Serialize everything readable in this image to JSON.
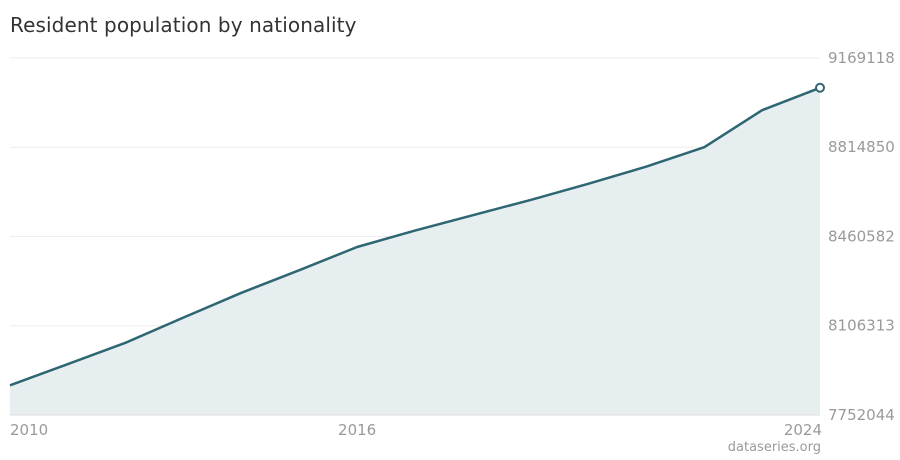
{
  "chart_data": {
    "type": "area",
    "title": "Resident population by nationality",
    "x": [
      2010,
      2011,
      2012,
      2013,
      2014,
      2015,
      2016,
      2017,
      2018,
      2019,
      2020,
      2021,
      2022,
      2023,
      2024
    ],
    "values": [
      7870000,
      7954000,
      8039000,
      8139000,
      8237000,
      8327000,
      8419000,
      8484000,
      8545000,
      8606000,
      8670000,
      8738000,
      8815000,
      8962000,
      9051000
    ],
    "yticks": [
      "9169118",
      "8814850",
      "8460582",
      "8106313",
      "7752044"
    ],
    "ylim": [
      7752044,
      9169118
    ],
    "xticks": [
      "2010",
      "2016",
      "2024"
    ],
    "xlim": [
      2010,
      2024
    ],
    "grid": "horizontal",
    "colors": {
      "line": "#2e6673",
      "area": "#e7eef0",
      "grid": "#eeeeee"
    }
  },
  "source": "dataseries.org"
}
